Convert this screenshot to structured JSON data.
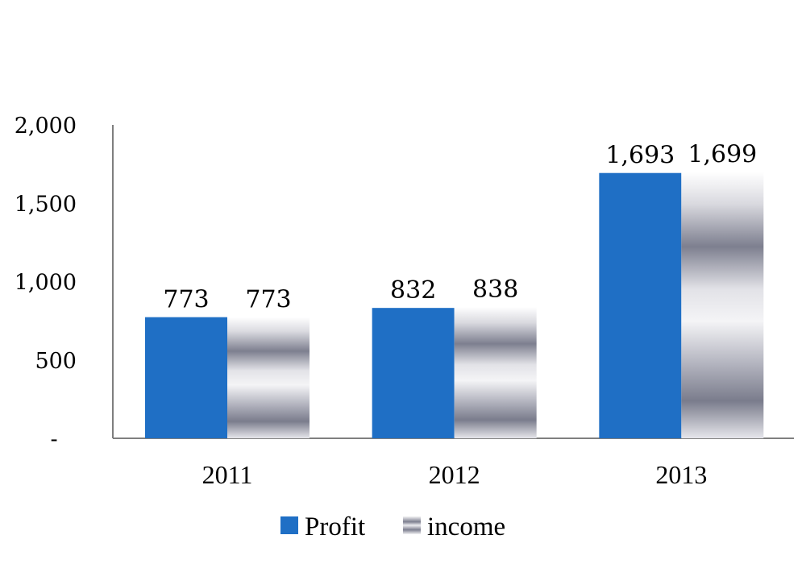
{
  "chart_data": {
    "type": "bar",
    "categories": [
      "2011",
      "2012",
      "2013"
    ],
    "series": [
      {
        "name": "Profit",
        "values": [
          773,
          832,
          1693
        ],
        "labels": [
          "773",
          "832",
          "1,693"
        ],
        "color": "#1f6fc5"
      },
      {
        "name": "income",
        "values": [
          773,
          838,
          1699
        ],
        "labels": [
          "773",
          "838",
          "1,699"
        ],
        "color": "#8c8e9c"
      }
    ],
    "y_ticks": [
      {
        "value": 0,
        "label": "-"
      },
      {
        "value": 500,
        "label": "500"
      },
      {
        "value": 1000,
        "label": "1,000"
      },
      {
        "value": 1500,
        "label": "1,500"
      },
      {
        "value": 2000,
        "label": "2,000"
      }
    ],
    "ylim": [
      0,
      2000
    ],
    "grid": false,
    "legend_position": "bottom"
  }
}
